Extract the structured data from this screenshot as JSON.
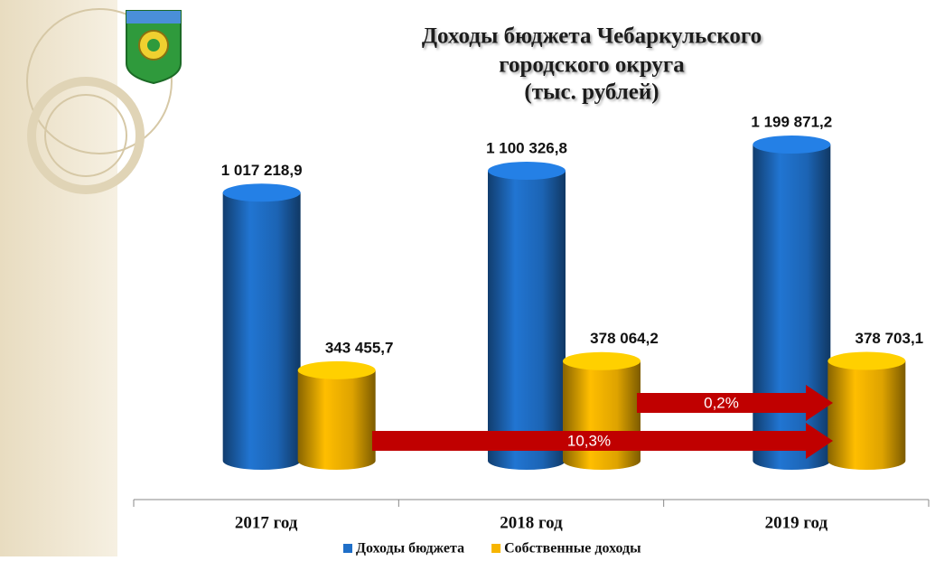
{
  "chart_data": {
    "type": "bar3d",
    "title": [
      "Доходы бюджета Чебаркульского",
      "городского округа",
      "(тыс. рублей)"
    ],
    "categories": [
      "2017 год",
      "2018 год",
      "2019 год"
    ],
    "series": [
      {
        "name": "Доходы бюджета",
        "color": "#1f6fc8",
        "values": [
          1017218.9,
          1100326.8,
          1199871.2
        ],
        "value_labels": [
          "1 017 218,9",
          "1 100 326,8",
          "1 199 871,2"
        ]
      },
      {
        "name": "Собственные доходы",
        "color": "#f7b500",
        "values": [
          343455.7,
          378064.2,
          378703.1
        ],
        "value_labels": [
          "343 455,7",
          "378 064,2",
          "378 703,1"
        ]
      }
    ],
    "annotations": [
      "10,3%",
      "0,2%"
    ],
    "legend": "bottom"
  }
}
